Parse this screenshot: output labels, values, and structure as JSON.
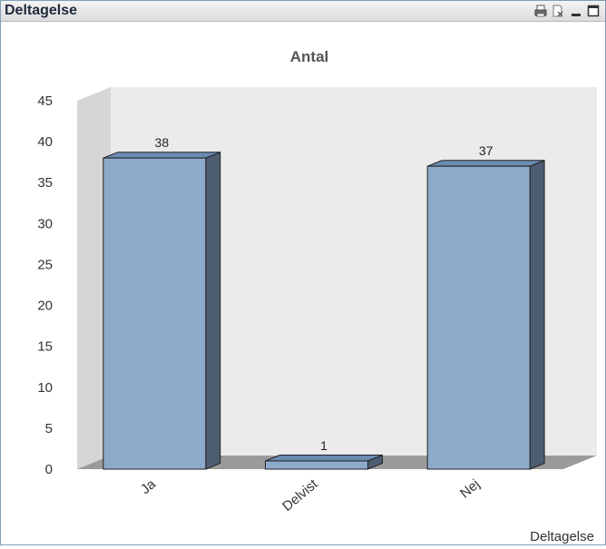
{
  "window": {
    "title": "Deltagelse",
    "controls": [
      "print-icon",
      "clear-selection-icon",
      "minimize-icon",
      "maximize-icon"
    ]
  },
  "chart_data": {
    "type": "bar",
    "title": "Antal",
    "xlabel": "Deltagelse",
    "ylabel": "",
    "categories": [
      "Ja",
      "Delvist",
      "Nej"
    ],
    "values": [
      38,
      1,
      37
    ],
    "ylim": [
      0,
      45
    ],
    "yticks": [
      0,
      5,
      10,
      15,
      20,
      25,
      30,
      35,
      40,
      45
    ],
    "style": "3d-bar",
    "colors": {
      "bar_front": "#8eaacb",
      "bar_side": "#4e5d72",
      "bar_top": "#6b8bb2",
      "wall_back": "#ebebeb",
      "wall_side": "#d6d6d6",
      "floor": "#9a9a9a"
    },
    "data_labels": true
  }
}
